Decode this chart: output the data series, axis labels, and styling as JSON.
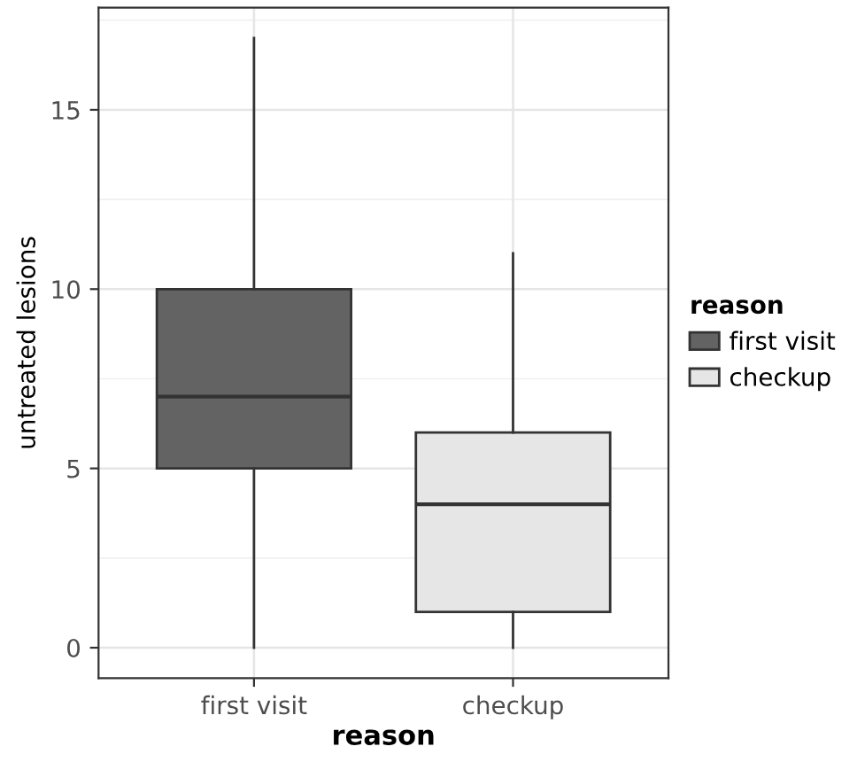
{
  "chart_data": {
    "type": "box",
    "xlabel": "reason",
    "ylabel": "untreated lesions",
    "legend_title": "reason",
    "categories": [
      "first visit",
      "checkup"
    ],
    "series": [
      {
        "name": "first visit",
        "color": "#636363",
        "boxes": [
          {
            "low": 0,
            "q1": 5,
            "median": 7,
            "q3": 10,
            "high": 17
          },
          null
        ]
      },
      {
        "name": "checkup",
        "color": "#e6e6e6",
        "boxes": [
          null,
          {
            "low": 0,
            "q1": 1,
            "median": 4,
            "q3": 6,
            "high": 11
          }
        ]
      }
    ],
    "ylim": [
      -0.85,
      17.85
    ],
    "yticks": [
      0,
      5,
      10,
      15
    ],
    "grid": true,
    "legend": "right"
  }
}
